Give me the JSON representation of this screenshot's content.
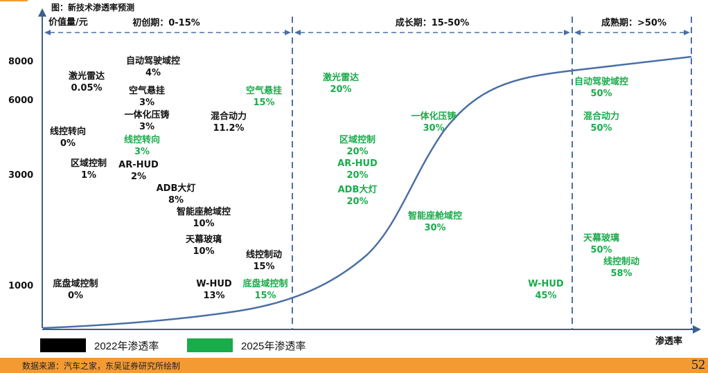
{
  "figure_title": "图：新技术渗透率预测",
  "footer": {
    "source": "数据来源：汽车之家，东吴证券研究所绘制",
    "page_number": "52"
  },
  "legend": [
    {
      "label": "2022年渗透率",
      "color": "#000000"
    },
    {
      "label": "2025年渗透率",
      "color": "#1aab4b"
    }
  ],
  "colors": {
    "axis": "#3c5f8c",
    "curve": "#4a6fa5",
    "divider": "#4a6fa5",
    "y2022": "#111111",
    "y2025": "#1aab4b"
  },
  "chart_data": {
    "type": "scatter",
    "title": "图：新技术渗透率预测",
    "ylabel": "价值量/元",
    "xlabel": "渗透率",
    "yticks": [
      "8000",
      "6000",
      "3000",
      "1000"
    ],
    "phases": [
      {
        "label": "初创期：0-15%"
      },
      {
        "label": "成长期：15-50%"
      },
      {
        "label": "成熟期：>50%"
      }
    ],
    "series": [
      {
        "name": "2022年渗透率",
        "points": [
          {
            "tech": "自动驾驶域控",
            "penetration": "4%"
          },
          {
            "tech": "激光雷达",
            "penetration": "0.05%"
          },
          {
            "tech": "空气悬挂",
            "penetration": "3%"
          },
          {
            "tech": "一体化压铸",
            "penetration": "3%"
          },
          {
            "tech": "混合动力",
            "penetration": "11.2%"
          },
          {
            "tech": "线控转向",
            "penetration": "0%"
          },
          {
            "tech": "区域控制",
            "penetration": "1%"
          },
          {
            "tech": "AR-HUD",
            "penetration": "2%"
          },
          {
            "tech": "ADB大灯",
            "penetration": "8%"
          },
          {
            "tech": "智能座舱域控",
            "penetration": "10%"
          },
          {
            "tech": "天幕玻璃",
            "penetration": "10%"
          },
          {
            "tech": "线控制动",
            "penetration": "15%"
          },
          {
            "tech": "W-HUD",
            "penetration": "13%"
          },
          {
            "tech": "底盘域控制",
            "penetration": "0%"
          }
        ]
      },
      {
        "name": "2025年渗透率",
        "points": [
          {
            "tech": "空气悬挂",
            "penetration": "15%"
          },
          {
            "tech": "线控转向",
            "penetration": "3%"
          },
          {
            "tech": "底盘域控制",
            "penetration": "15%"
          },
          {
            "tech": "激光雷达",
            "penetration": "20%"
          },
          {
            "tech": "一体化压铸",
            "penetration": "30%"
          },
          {
            "tech": "区域控制",
            "penetration": "20%"
          },
          {
            "tech": "AR-HUD",
            "penetration": "20%"
          },
          {
            "tech": "ADB大灯",
            "penetration": "20%"
          },
          {
            "tech": "智能座舱域控",
            "penetration": "30%"
          },
          {
            "tech": "W-HUD",
            "penetration": "45%"
          },
          {
            "tech": "自动驾驶域控",
            "penetration": "50%"
          },
          {
            "tech": "混合动力",
            "penetration": "50%"
          },
          {
            "tech": "天幕玻璃",
            "penetration": "50%"
          },
          {
            "tech": "线控制动",
            "penetration": "58%"
          }
        ]
      }
    ]
  }
}
